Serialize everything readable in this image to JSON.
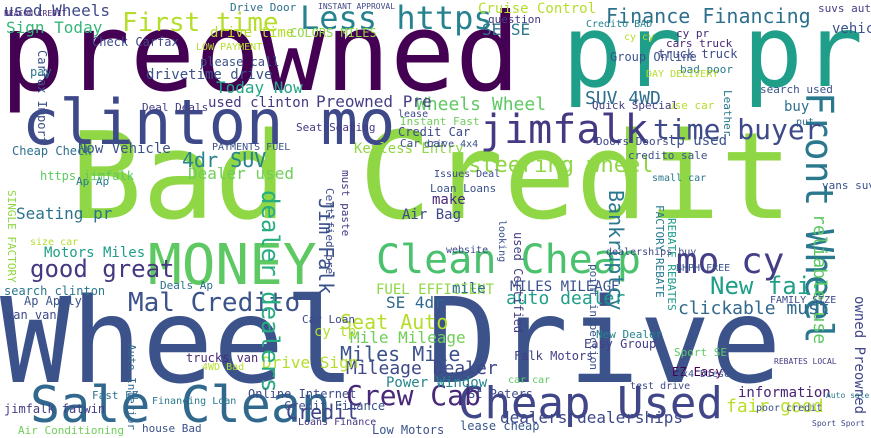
{
  "cloud": {
    "words": [
      {
        "text": "Wheel Drive",
        "color": "#3b528b"
      },
      {
        "text": "Bad Credit",
        "color": "#8fd744"
      },
      {
        "text": "preowned",
        "color": "#440154"
      },
      {
        "text": "pr pr",
        "color": "#1f9e89"
      },
      {
        "text": "clinton mo",
        "color": "#3e4989"
      },
      {
        "text": "MONEY",
        "color": "#5ec962"
      },
      {
        "text": "Sale Clean",
        "color": "#31688e"
      },
      {
        "text": "Cheap Used",
        "color": "#404688"
      },
      {
        "text": "Clean Cheap",
        "color": "#4ac16d"
      },
      {
        "text": "jimfalk",
        "color": "#443983"
      },
      {
        "text": "Front Wheel",
        "color": "#2a788e"
      },
      {
        "text": "mo cy",
        "color": "#433e85"
      },
      {
        "text": "Less https",
        "color": "#26828e"
      },
      {
        "text": "First time",
        "color": "#b5de2b"
      },
      {
        "text": "Mal Credito",
        "color": "#3b528b"
      },
      {
        "text": "Finance Financing",
        "color": "#2d708e"
      },
      {
        "text": "time buyer",
        "color": "#3e4a89"
      },
      {
        "text": "Crew Cab",
        "color": "#482878"
      },
      {
        "text": "good great",
        "color": "#453781"
      },
      {
        "text": "steering wheel",
        "color": "#8fd744"
      },
      {
        "text": "Wheels Wheel",
        "color": "#5ec962"
      },
      {
        "text": "auto dealer",
        "color": "#1f9e89"
      },
      {
        "text": "clickable must",
        "color": "#31688e"
      },
      {
        "text": "Miles Mile",
        "color": "#3b528b"
      },
      {
        "text": "Seat Auto",
        "color": "#b5de2b"
      },
      {
        "text": "Mileage Dealer",
        "color": "#3e4989"
      },
      {
        "text": "Mile Mileage",
        "color": "#6ece58"
      },
      {
        "text": "fair good",
        "color": "#b8de29"
      },
      {
        "text": "4dr SUV",
        "color": "#26828e"
      },
      {
        "text": "SUV 4WD",
        "color": "#2e6e8e"
      },
      {
        "text": "New fair",
        "color": "#1f9e89"
      },
      {
        "text": "FUEL EFFICIENT",
        "color": "#8fd744"
      },
      {
        "text": "MILES MILEAGE",
        "color": "#3b528b"
      },
      {
        "text": "Bankruptcy",
        "color": "#2a788e"
      },
      {
        "text": "Credit",
        "color": "#404688"
      },
      {
        "text": "Falk Motors",
        "color": "#433e85"
      },
      {
        "text": "Drive Sign",
        "color": "#b5de2b"
      },
      {
        "text": "dealers dealerships",
        "color": "#3e4989"
      },
      {
        "text": "lease cheap",
        "color": "#38588c"
      },
      {
        "text": "information",
        "color": "#482475"
      },
      {
        "text": "Jim Falk",
        "color": "#3b528b"
      },
      {
        "text": "dealer dealers",
        "color": "#27ad81"
      },
      {
        "text": "Sign Today",
        "color": "#35b779"
      },
      {
        "text": "used Wheels",
        "color": "#3e4989"
      },
      {
        "text": "Today Now",
        "color": "#22a884"
      },
      {
        "text": "Now Vehicle",
        "color": "#3b528b"
      },
      {
        "text": "Dealer used",
        "color": "#6ece58"
      },
      {
        "text": "Seating pr",
        "color": "#2c728e"
      },
      {
        "text": "Motors Miles",
        "color": "#1f9e89"
      },
      {
        "text": "Power Window",
        "color": "#25858e"
      },
      {
        "text": "Preowned Pre",
        "color": "#433e85"
      },
      {
        "text": "Keyless Entry",
        "color": "#8fd744"
      },
      {
        "text": "Seat Seating",
        "color": "#443983"
      },
      {
        "text": "Cruise Control",
        "color": "#b5de2b"
      },
      {
        "text": "SE SE",
        "color": "#2a788e"
      },
      {
        "text": "SE 4dr",
        "color": "#31688e"
      },
      {
        "text": "Air Bag",
        "color": "#3e4989"
      },
      {
        "text": "tp used",
        "color": "#3b528b"
      },
      {
        "text": "make",
        "color": "#482878"
      },
      {
        "text": "mile",
        "color": "#2d708e"
      },
      {
        "text": "drive time",
        "color": "#b5de2b"
      },
      {
        "text": "drivetime drive",
        "color": "#3b528b"
      },
      {
        "text": "used clinton",
        "color": "#443983"
      },
      {
        "text": "COLORS MILES",
        "color": "#8fd744"
      },
      {
        "text": "reliable use",
        "color": "#5ec962"
      },
      {
        "text": "owned Preowned",
        "color": "#404688"
      },
      {
        "text": "Car Loan",
        "color": "#3e4989"
      },
      {
        "text": "cy tp",
        "color": "#b5de2b"
      },
      {
        "text": "Loans Finance",
        "color": "#453781"
      },
      {
        "text": "Low Motors",
        "color": "#3b528b"
      },
      {
        "text": "search clinton",
        "color": "#2a788e"
      },
      {
        "text": "jimfalk fatwin",
        "color": "#433e85"
      },
      {
        "text": "Air Conditioning",
        "color": "#6ece58"
      },
      {
        "text": "house Bad",
        "color": "#3b528b"
      },
      {
        "text": "Fast EZ",
        "color": "#2d708e"
      },
      {
        "text": "Online Internet",
        "color": "#3e4989"
      },
      {
        "text": "EZ Easy",
        "color": "#440154"
      },
      {
        "text": "Sport SE",
        "color": "#5ec962"
      },
      {
        "text": "Credit Finance",
        "color": "#3b528b"
      },
      {
        "text": "Easy Group",
        "color": "#433e85"
      },
      {
        "text": "New Dealer",
        "color": "#26828e"
      },
      {
        "text": "St Peters",
        "color": "#3e4989"
      },
      {
        "text": "Financing Loan",
        "color": "#2a788e"
      },
      {
        "text": "trucks van",
        "color": "#482878"
      },
      {
        "text": "4WD Bad",
        "color": "#b5de2b"
      },
      {
        "text": "Auto Interior",
        "color": "#31688e"
      },
      {
        "text": "Deals Ap",
        "color": "#2d708e"
      },
      {
        "text": "search used",
        "color": "#3b528b"
      },
      {
        "text": "cars truck",
        "color": "#482475"
      },
      {
        "text": "truck truck",
        "color": "#3e4989"
      },
      {
        "text": "bad poor",
        "color": "#2a788e"
      },
      {
        "text": "use car",
        "color": "#b5de2b"
      },
      {
        "text": "buy",
        "color": "#2d708e"
      },
      {
        "text": "put",
        "color": "#31688e"
      },
      {
        "text": "vans suv",
        "color": "#3b528b"
      },
      {
        "text": "suvs auto",
        "color": "#433e85"
      },
      {
        "text": "vehicle",
        "color": "#3b528b"
      },
      {
        "text": "cy pr",
        "color": "#482878"
      },
      {
        "text": "question",
        "color": "#443983"
      },
      {
        "text": "website",
        "color": "#3e4989"
      },
      {
        "text": "looking",
        "color": "#3b528b"
      },
      {
        "text": "Ap Ap",
        "color": "#2a788e"
      },
      {
        "text": "must paste",
        "color": "#443983"
      },
      {
        "text": "Issues Deal",
        "color": "#3e4989"
      },
      {
        "text": "Loan Loans",
        "color": "#3b528b"
      },
      {
        "text": "SINGLE FACTORY",
        "color": "#8fd744"
      },
      {
        "text": "FACTORY REBATE",
        "color": "#2a788e"
      },
      {
        "text": "REBATE REBATES",
        "color": "#1f9e89"
      },
      {
        "text": "Credito BAD",
        "color": "#26828e"
      },
      {
        "text": "Carfax Import",
        "color": "#3b528b"
      },
      {
        "text": "Check Carfax",
        "color": "#3e4989"
      },
      {
        "text": "Deal Deals",
        "color": "#433e85"
      },
      {
        "text": "Cheap Check",
        "color": "#2d708e"
      },
      {
        "text": "https jimfalk",
        "color": "#5ec962"
      },
      {
        "text": "Car car",
        "color": "#3b528b"
      },
      {
        "text": "lease",
        "color": "#3e4989"
      },
      {
        "text": "BEACON CREDIT",
        "color": "#482878"
      },
      {
        "text": "Ap Apply",
        "color": "#3b528b"
      },
      {
        "text": "van van",
        "color": "#3e4989"
      },
      {
        "text": "pay",
        "color": "#2a788e"
      },
      {
        "text": "size car",
        "color": "#b5de2b"
      },
      {
        "text": "Drive Door",
        "color": "#2d708e"
      },
      {
        "text": "please call",
        "color": "#3b528b"
      },
      {
        "text": "LOW PAYMENT",
        "color": "#b5de2b"
      },
      {
        "text": "cy cy",
        "color": "#b5de2b"
      },
      {
        "text": "Credit Car",
        "color": "#3e4989"
      },
      {
        "text": "Instant Fast",
        "color": "#6ece58"
      },
      {
        "text": "Group Online",
        "color": "#3b528b"
      },
      {
        "text": "Quick Special",
        "color": "#433e85"
      },
      {
        "text": "Doors Doors",
        "color": "#3e4989"
      },
      {
        "text": "credito sale",
        "color": "#3b528b"
      },
      {
        "text": "Leather",
        "color": "#2a788e"
      },
      {
        "text": "PAYMENTS FUEL",
        "color": "#3b528b"
      },
      {
        "text": "INSTANT APPROVAL",
        "color": "#3e4989"
      },
      {
        "text": "DAY DELIVERY",
        "color": "#b5de2b"
      },
      {
        "text": "drive 4x4",
        "color": "#3b528b"
      },
      {
        "text": "Certified pre",
        "color": "#3e4989"
      },
      {
        "text": "used Certified",
        "color": "#433e85"
      },
      {
        "text": "point inspection",
        "color": "#3b528b"
      },
      {
        "text": "dealerships buy",
        "color": "#3e4989"
      },
      {
        "text": "small car",
        "color": "#2a788e"
      },
      {
        "text": "BHPH FREE",
        "color": "#3b528b"
      },
      {
        "text": "FAMILY SIZE",
        "color": "#3e4989"
      },
      {
        "text": "REBATES LOCAL",
        "color": "#443983"
      },
      {
        "text": "4x4 Diesel",
        "color": "#3b528b"
      },
      {
        "text": "test drive",
        "color": "#3e4989"
      },
      {
        "text": "car car",
        "color": "#5ec962"
      },
      {
        "text": "poor credit",
        "color": "#3b528b"
      },
      {
        "text": "Sport Sport",
        "color": "#3e4989"
      },
      {
        "text": "Auto sale",
        "color": "#2a788e"
      }
    ]
  }
}
